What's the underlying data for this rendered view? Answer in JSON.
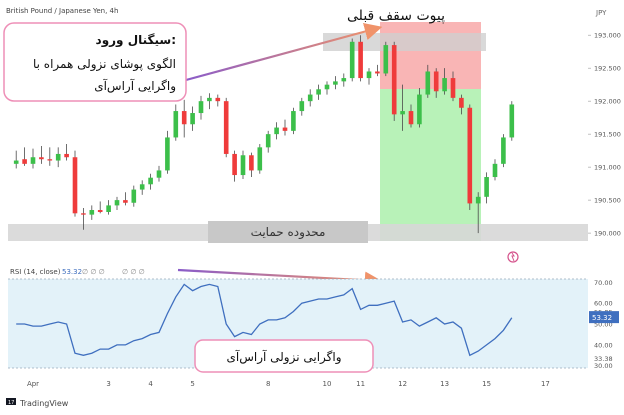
{
  "header": {
    "symbol": "British Pound / Japanese Yen, 4h",
    "currency": "JPY"
  },
  "annotations": {
    "signal_title": "سیگنال ورود:",
    "signal_line1": "الگوی پوشای نزولی همراه با",
    "signal_line2": "واگرایی آراس‌آی",
    "resistance_label": "پیوت سقف قبلی",
    "support_label": "محدوده حمایت",
    "divergence_label": "واگرایی نزولی آراس‌آی"
  },
  "rsi_panel": {
    "indicator_label": "RSI (14, close)",
    "current_value_label": "53.32",
    "placeholders": "∅ ∅ ∅",
    "placeholders2": "∅ ∅ ∅"
  },
  "footer": {
    "brand": "TradingView",
    "logo_text": "17"
  },
  "colors": {
    "bull": "#26a69a",
    "bull_bright": "#3cbf4a",
    "bear": "#ef3b3b",
    "wick": "#4a4a4a",
    "rsi_line": "#3f6fbf",
    "rsi_band": "#e3f2f9",
    "take_profit_zone": "#b8f2b8",
    "stop_zone": "#f9b5b5",
    "support_zone": "#cfcfcf",
    "arrow_purple": "#8a5cc9",
    "arrow_orange": "#f0936a",
    "annotation_border": "#ee8fb7"
  },
  "chart_data": [
    {
      "type": "candlestick",
      "title": "British Pound / Japanese Yen, 4h",
      "ylabel": "JPY",
      "y_ticks": [
        "193.000",
        "192.500",
        "192.000",
        "191.500",
        "191.000",
        "190.500",
        "190.000"
      ],
      "ylim": [
        189.85,
        193.2
      ],
      "x_ticks": [
        "Apr",
        "3",
        "4",
        "5",
        "8",
        "10",
        "11",
        "12",
        "13",
        "15",
        "17"
      ],
      "candles_ohlc": [
        [
          191.05,
          191.25,
          190.98,
          191.1
        ],
        [
          191.12,
          191.3,
          191.02,
          191.05
        ],
        [
          191.05,
          191.28,
          190.98,
          191.15
        ],
        [
          191.15,
          191.32,
          191.05,
          191.12
        ],
        [
          191.12,
          191.3,
          191.02,
          191.1
        ],
        [
          191.1,
          191.3,
          191.0,
          191.2
        ],
        [
          191.2,
          191.35,
          191.1,
          191.15
        ],
        [
          191.15,
          191.25,
          190.25,
          190.3
        ],
        [
          190.3,
          190.38,
          190.05,
          190.28
        ],
        [
          190.28,
          190.42,
          190.2,
          190.35
        ],
        [
          190.35,
          190.48,
          190.3,
          190.32
        ],
        [
          190.32,
          190.5,
          190.28,
          190.42
        ],
        [
          190.42,
          190.55,
          190.35,
          190.5
        ],
        [
          190.5,
          190.62,
          190.42,
          190.46
        ],
        [
          190.46,
          190.72,
          190.4,
          190.66
        ],
        [
          190.66,
          190.8,
          190.58,
          190.74
        ],
        [
          190.74,
          190.9,
          190.66,
          190.84
        ],
        [
          190.84,
          191.02,
          190.78,
          190.95
        ],
        [
          190.95,
          191.55,
          190.9,
          191.45
        ],
        [
          191.45,
          191.95,
          191.4,
          191.85
        ],
        [
          191.85,
          192.02,
          191.45,
          191.65
        ],
        [
          191.65,
          191.92,
          191.55,
          191.82
        ],
        [
          191.82,
          192.08,
          191.72,
          192.0
        ],
        [
          192.0,
          192.12,
          191.88,
          192.05
        ],
        [
          192.05,
          192.1,
          191.92,
          192.0
        ],
        [
          192.0,
          192.05,
          191.15,
          191.2
        ],
        [
          191.2,
          191.25,
          190.78,
          190.88
        ],
        [
          190.88,
          191.25,
          190.82,
          191.18
        ],
        [
          191.18,
          191.22,
          190.85,
          190.95
        ],
        [
          190.95,
          191.35,
          190.9,
          191.3
        ],
        [
          191.3,
          191.55,
          191.22,
          191.5
        ],
        [
          191.5,
          191.68,
          191.42,
          191.6
        ],
        [
          191.6,
          191.72,
          191.48,
          191.55
        ],
        [
          191.55,
          191.9,
          191.5,
          191.85
        ],
        [
          191.85,
          192.05,
          191.78,
          192.0
        ],
        [
          192.0,
          192.18,
          191.92,
          192.1
        ],
        [
          192.1,
          192.25,
          192.02,
          192.18
        ],
        [
          192.18,
          192.3,
          192.1,
          192.25
        ],
        [
          192.25,
          192.38,
          192.18,
          192.3
        ],
        [
          192.3,
          192.42,
          192.22,
          192.35
        ],
        [
          192.35,
          192.95,
          192.3,
          192.9
        ],
        [
          192.9,
          193.0,
          192.3,
          192.35
        ],
        [
          192.35,
          192.5,
          192.25,
          192.45
        ],
        [
          192.45,
          192.55,
          192.38,
          192.42
        ],
        [
          192.42,
          192.9,
          192.38,
          192.85
        ],
        [
          192.85,
          192.9,
          191.7,
          191.8
        ],
        [
          191.8,
          192.25,
          191.55,
          191.85
        ],
        [
          191.85,
          191.95,
          191.6,
          191.65
        ],
        [
          191.65,
          192.2,
          191.6,
          192.1
        ],
        [
          192.1,
          192.55,
          192.05,
          192.45
        ],
        [
          192.45,
          192.5,
          192.05,
          192.15
        ],
        [
          192.15,
          192.5,
          192.1,
          192.35
        ],
        [
          192.35,
          192.45,
          192.0,
          192.05
        ],
        [
          192.05,
          192.1,
          191.8,
          191.9
        ],
        [
          191.9,
          191.95,
          190.35,
          190.45
        ],
        [
          190.45,
          190.62,
          190.0,
          190.55
        ],
        [
          190.55,
          190.92,
          190.45,
          190.85
        ],
        [
          190.85,
          191.12,
          190.8,
          191.05
        ],
        [
          191.05,
          191.5,
          191.0,
          191.45
        ],
        [
          191.45,
          192.0,
          191.4,
          191.95
        ]
      ]
    },
    {
      "type": "line",
      "title": "RSI (14, close)",
      "y_ticks": [
        70.0,
        60.0,
        55.85,
        50.0,
        40.0,
        33.38,
        30.0
      ],
      "ylim": [
        27,
        74
      ],
      "band": [
        30,
        70
      ],
      "current_value": 53.32,
      "values": [
        50,
        50,
        49,
        49,
        50,
        51,
        50,
        36,
        35,
        36,
        38,
        38,
        40,
        40,
        42,
        43,
        45,
        46,
        55,
        63,
        69,
        66,
        68,
        69,
        68,
        50,
        44,
        46,
        45,
        50,
        52,
        52,
        53,
        56,
        60,
        61,
        62,
        62,
        63,
        64,
        67,
        57,
        59,
        59,
        60,
        61,
        51,
        52,
        49,
        51,
        53,
        50,
        51,
        48,
        35,
        37,
        40,
        43,
        47,
        53
      ]
    }
  ]
}
